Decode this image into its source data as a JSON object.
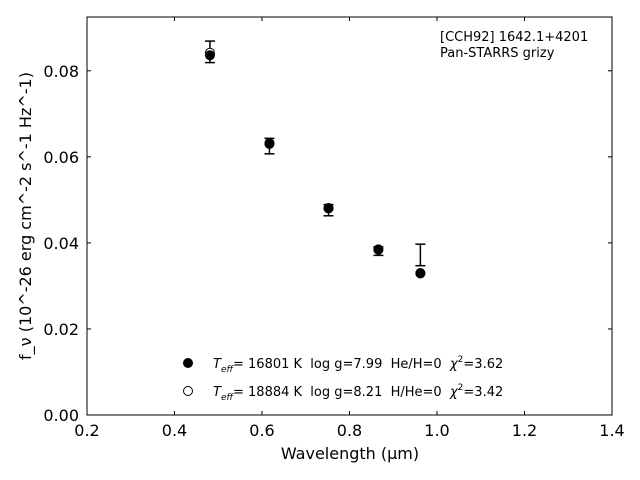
{
  "chart_data": {
    "type": "scatter",
    "annotation": [
      "[CCH92] 1642.1+4201",
      "Pan-STARRS grizy"
    ],
    "xlabel": "Wavelength (μm)",
    "ylabel": "f_ν (10^-26 erg cm^-2 s^-1 Hz^-1)",
    "xlim": [
      0.2,
      1.4
    ],
    "ylim": [
      0.0,
      0.0925
    ],
    "xticks": [
      0.2,
      0.4,
      0.6,
      0.8,
      1.0,
      1.2,
      1.4
    ],
    "xtick_labels": [
      "0.2",
      "0.4",
      "0.6",
      "0.8",
      "1.0",
      "1.2",
      "1.4"
    ],
    "yticks": [
      0.0,
      0.02,
      0.04,
      0.06,
      0.08
    ],
    "ytick_labels": [
      "0.00",
      "0.02",
      "0.04",
      "0.06",
      "0.08"
    ],
    "grid": false,
    "legend_position": "bottom-center",
    "observed": [
      {
        "x": 0.481,
        "y": 0.0844,
        "err": 0.0025
      },
      {
        "x": 0.617,
        "y": 0.0625,
        "err": 0.0018
      },
      {
        "x": 0.752,
        "y": 0.0476,
        "err": 0.0013
      },
      {
        "x": 0.866,
        "y": 0.0381,
        "err": 0.001
      },
      {
        "x": 0.962,
        "y": 0.0372,
        "err": 0.0025
      }
    ],
    "series": [
      {
        "marker": "filled-circle",
        "legend": {
          "prefix": "T",
          "sub": "eff",
          "text": "= 16801 K  log g=7.99  He/H=0  ",
          "chi": "χ",
          "chi_sup": "2",
          "chi_val": "=3.62"
        },
        "x": [
          0.481,
          0.617,
          0.752,
          0.866,
          0.962
        ],
        "y": [
          0.0836,
          0.063,
          0.048,
          0.0384,
          0.0329
        ]
      },
      {
        "marker": "open-circle",
        "legend": {
          "prefix": "T",
          "sub": "eff",
          "text": "= 18884 K  log g=8.21  H/He=0  ",
          "chi": "χ",
          "chi_sup": "2",
          "chi_val": "=3.42"
        },
        "x": [
          0.481,
          0.617,
          0.752,
          0.866,
          0.962
        ],
        "y": [
          0.0842,
          0.0632,
          0.0481,
          0.0385,
          0.033
        ]
      }
    ]
  }
}
